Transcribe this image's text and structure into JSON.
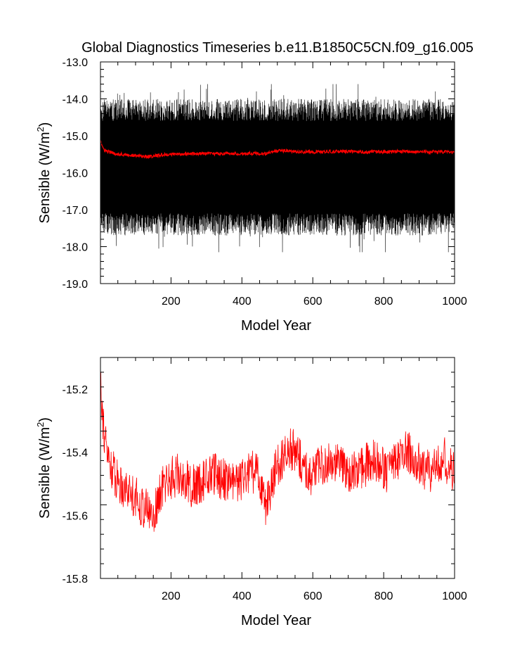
{
  "figure_title": "Global Diagnostics Timeseries b.e11.B1850C5CN.f09_g16.005",
  "chart_data": [
    {
      "type": "line",
      "title": "Global Diagnostics Timeseries b.e11.B1850C5CN.f09_g16.005",
      "xlabel": "Model Year",
      "ylabel": "Sensible (W/m",
      "ylabel_sup": "2",
      "ylabel_close": ")",
      "xlim": [
        1,
        1000
      ],
      "ylim": [
        -19.0,
        -13.0
      ],
      "x_ticks": [
        200,
        400,
        600,
        800,
        1000
      ],
      "x_tick_labels": [
        "200",
        "400",
        "600",
        "800",
        "1000"
      ],
      "y_ticks": [
        -13.0,
        -14.0,
        -15.0,
        -16.0,
        -17.0,
        -18.0,
        -19.0
      ],
      "y_tick_labels": [
        "-13.0",
        "-14.0",
        "-15.0",
        "-16.0",
        "-17.0",
        "-18.0",
        "-19.0"
      ],
      "grid": false,
      "legend": "none",
      "series": [
        {
          "color": "#000000",
          "style": "monthly seasonal cycle",
          "x_range": [
            1,
            1000
          ],
          "upper_envelope_mean": -14.3,
          "lower_envelope_mean": -17.4,
          "max": -13.6,
          "min": -18.15
        },
        {
          "color": "#ff0000",
          "style": "annual mean",
          "x": [
            1,
            5,
            10,
            20,
            40,
            60,
            80,
            100,
            130,
            150,
            170,
            200,
            250,
            300,
            350,
            400,
            440,
            460,
            480,
            500,
            520,
            550,
            600,
            650,
            700,
            750,
            800,
            850,
            900,
            950,
            1000
          ],
          "y": [
            -15.1,
            -15.25,
            -15.38,
            -15.42,
            -15.48,
            -15.5,
            -15.52,
            -15.54,
            -15.56,
            -15.55,
            -15.52,
            -15.5,
            -15.49,
            -15.48,
            -15.48,
            -15.48,
            -15.47,
            -15.5,
            -15.45,
            -15.42,
            -15.4,
            -15.43,
            -15.44,
            -15.43,
            -15.42,
            -15.44,
            -15.43,
            -15.42,
            -15.44,
            -15.43,
            -15.45
          ]
        }
      ]
    },
    {
      "type": "line",
      "xlabel": "Model Year",
      "ylabel": "Sensible (W/m",
      "ylabel_sup": "2",
      "ylabel_close": ")",
      "xlim": [
        1,
        1000
      ],
      "ylim": [
        -15.8,
        -15.1
      ],
      "x_ticks": [
        200,
        400,
        600,
        800,
        1000
      ],
      "x_tick_labels": [
        "200",
        "400",
        "600",
        "800",
        "1000"
      ],
      "y_ticks": [
        -15.2,
        -15.4,
        -15.6,
        -15.8
      ],
      "y_tick_labels": [
        "-15.2",
        "-15.4",
        "-15.6",
        "-15.8"
      ],
      "grid": false,
      "legend": "none",
      "series": [
        {
          "color": "#ff0000",
          "style": "annual mean",
          "x": [
            1,
            3,
            6,
            10,
            15,
            20,
            30,
            40,
            50,
            60,
            70,
            80,
            90,
            100,
            110,
            120,
            130,
            140,
            150,
            160,
            170,
            180,
            200,
            220,
            240,
            260,
            280,
            300,
            320,
            340,
            360,
            380,
            400,
            420,
            440,
            455,
            465,
            475,
            490,
            510,
            530,
            550,
            570,
            590,
            610,
            630,
            650,
            670,
            690,
            710,
            730,
            750,
            770,
            790,
            810,
            830,
            850,
            870,
            890,
            910,
            930,
            950,
            970,
            990,
            1000
          ],
          "y": [
            -15.12,
            -15.18,
            -15.26,
            -15.32,
            -15.37,
            -15.41,
            -15.44,
            -15.47,
            -15.49,
            -15.5,
            -15.51,
            -15.52,
            -15.53,
            -15.54,
            -15.56,
            -15.57,
            -15.58,
            -15.59,
            -15.6,
            -15.57,
            -15.53,
            -15.5,
            -15.48,
            -15.47,
            -15.49,
            -15.51,
            -15.5,
            -15.48,
            -15.47,
            -15.48,
            -15.49,
            -15.5,
            -15.49,
            -15.47,
            -15.46,
            -15.5,
            -15.57,
            -15.55,
            -15.47,
            -15.43,
            -15.38,
            -15.4,
            -15.44,
            -15.47,
            -15.46,
            -15.44,
            -15.42,
            -15.44,
            -15.45,
            -15.47,
            -15.46,
            -15.44,
            -15.42,
            -15.44,
            -15.46,
            -15.43,
            -15.41,
            -15.4,
            -15.43,
            -15.45,
            -15.46,
            -15.44,
            -15.42,
            -15.45,
            -15.47
          ]
        }
      ]
    }
  ]
}
